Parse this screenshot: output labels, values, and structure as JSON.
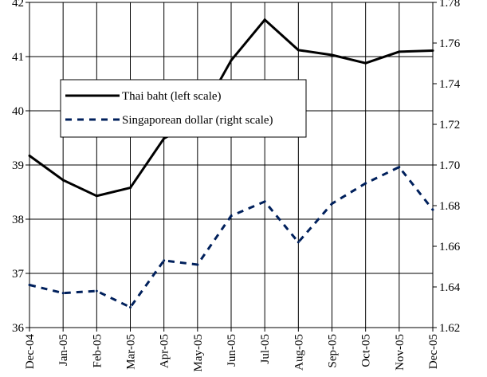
{
  "chart_data": {
    "type": "line",
    "title": "",
    "xlabel": "",
    "ylabel_left": "",
    "ylabel_right": "",
    "categories": [
      "Dec-04",
      "Jan-05",
      "Feb-05",
      "Mar-05",
      "Apr-05",
      "May-05",
      "Jun-05",
      "Jul-05",
      "Aug-05",
      "Sep-05",
      "Oct-05",
      "Nov-05",
      "Dec-05"
    ],
    "y_left": {
      "min": 36,
      "max": 42,
      "step": 1,
      "ticks": [
        "36",
        "37",
        "38",
        "39",
        "40",
        "41",
        "42"
      ]
    },
    "y_right": {
      "min": 1.62,
      "max": 1.78,
      "step": 0.02,
      "ticks": [
        "1.62",
        "1.64",
        "1.66",
        "1.68",
        "1.70",
        "1.72",
        "1.74",
        "1.76",
        "1.78"
      ]
    },
    "grid": true,
    "legend_position": "middle-left",
    "series": [
      {
        "name": "Thai baht (left scale)",
        "axis": "left",
        "style": "solid",
        "color": "#000000",
        "values": [
          39.17,
          38.72,
          38.43,
          38.58,
          39.49,
          39.82,
          40.93,
          41.68,
          41.12,
          41.03,
          40.88,
          41.09,
          41.11
        ]
      },
      {
        "name": "Singaporean dollar (right scale)",
        "axis": "right",
        "style": "dashed",
        "color": "#00205c",
        "values": [
          1.641,
          1.637,
          1.638,
          1.63,
          1.653,
          1.651,
          1.675,
          1.682,
          1.662,
          1.681,
          1.691,
          1.699,
          1.678
        ]
      }
    ]
  }
}
